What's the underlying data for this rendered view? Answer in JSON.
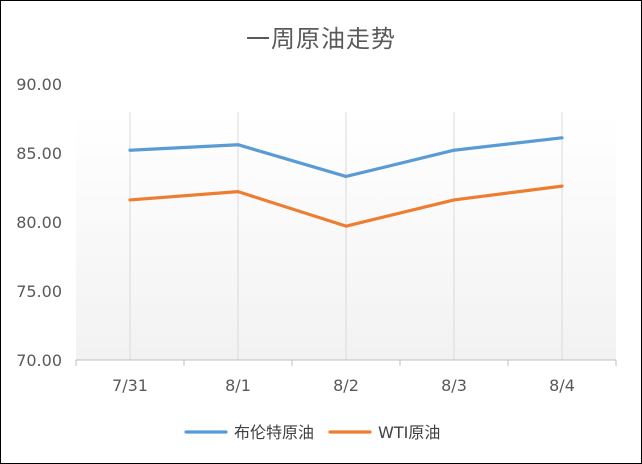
{
  "chart_data": {
    "type": "line",
    "title": "一周原油走势",
    "xlabel": "",
    "ylabel": "",
    "categories": [
      "7/31",
      "8/1",
      "8/2",
      "8/3",
      "8/4"
    ],
    "y_ticks": [
      "70.00",
      "75.00",
      "80.00",
      "85.00",
      "90.00"
    ],
    "ylim": [
      70,
      90
    ],
    "grid": "vertical",
    "legend_position": "bottom",
    "series": [
      {
        "name": "布伦特原油",
        "color": "#5B9BD5",
        "values": [
          85.2,
          85.6,
          83.3,
          85.2,
          86.1
        ]
      },
      {
        "name": "WTI原油",
        "color": "#ED7D31",
        "values": [
          81.6,
          82.2,
          79.7,
          81.6,
          82.6
        ]
      }
    ]
  }
}
